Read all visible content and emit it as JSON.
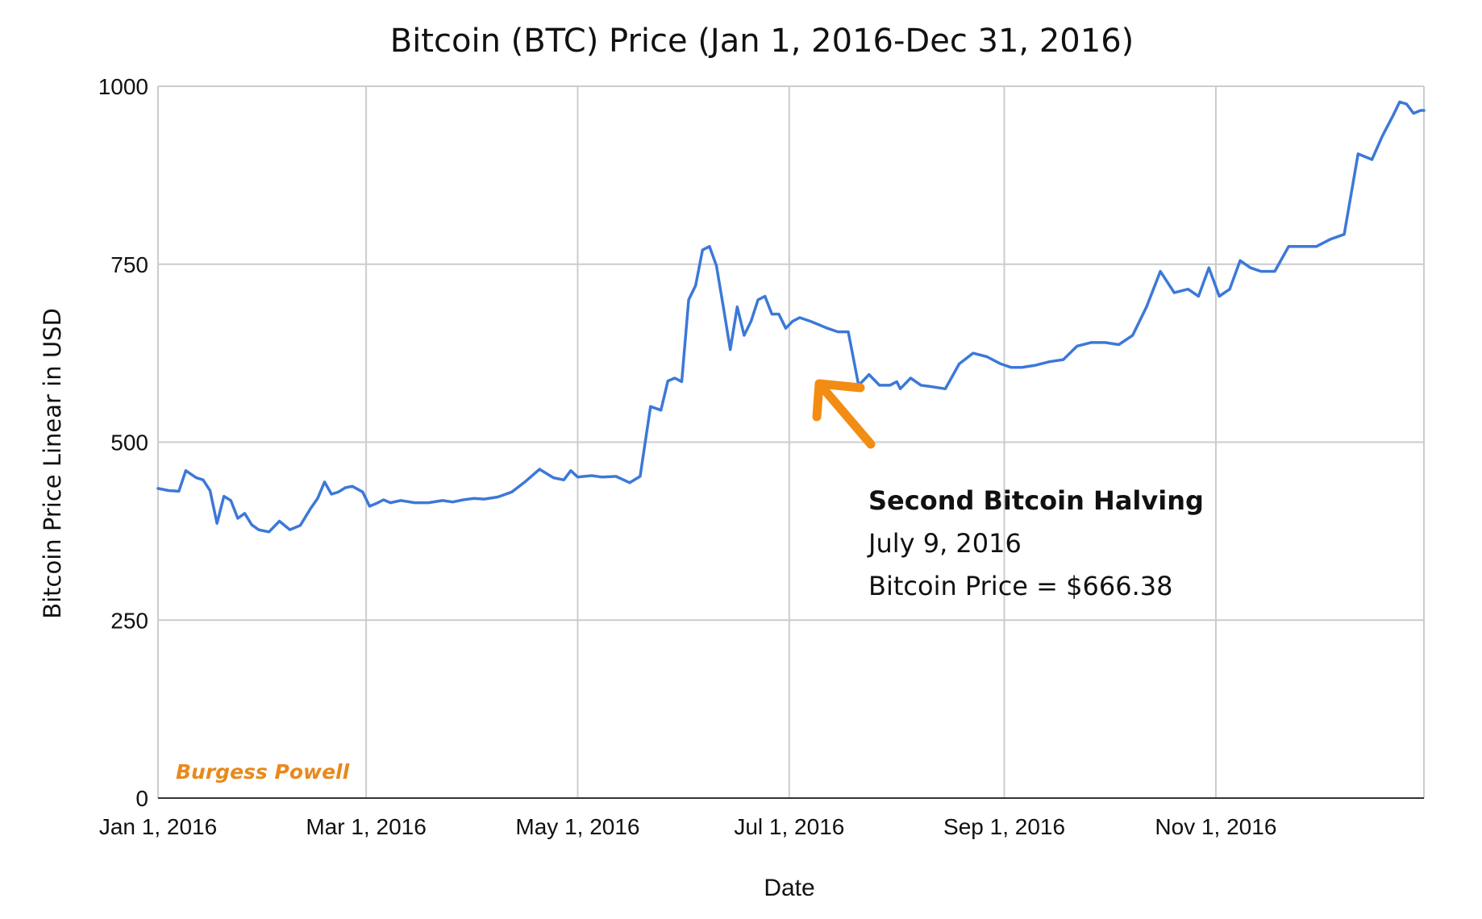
{
  "chart_data": {
    "type": "line",
    "title": "Bitcoin (BTC) Price (Jan 1, 2016-Dec 31, 2016)",
    "xlabel": "Date",
    "ylabel": "Bitcoin Price Linear in USD",
    "xlim": [
      "2016-01-01",
      "2016-12-31"
    ],
    "ylim": [
      0,
      1000
    ],
    "yticks": [
      "0",
      "250",
      "500",
      "750",
      "1000"
    ],
    "xticks": [
      {
        "date": "2016-01-01",
        "label": "Jan 1, 2016"
      },
      {
        "date": "2016-03-01",
        "label": "Mar 1, 2016"
      },
      {
        "date": "2016-05-01",
        "label": "May 1, 2016"
      },
      {
        "date": "2016-07-01",
        "label": "Jul 1, 2016"
      },
      {
        "date": "2016-09-01",
        "label": "Sep 1, 2016"
      },
      {
        "date": "2016-11-01",
        "label": "Nov 1, 2016"
      }
    ],
    "grid": true,
    "line_color": "#3c78d8",
    "series": [
      {
        "x": [
          "2016-01-01",
          "2016-01-04",
          "2016-01-07",
          "2016-01-09",
          "2016-01-12",
          "2016-01-14",
          "2016-01-16",
          "2016-01-18",
          "2016-01-20",
          "2016-01-22",
          "2016-01-24",
          "2016-01-26",
          "2016-01-28",
          "2016-01-30",
          "2016-02-02",
          "2016-02-05",
          "2016-02-08",
          "2016-02-11",
          "2016-02-14",
          "2016-02-16",
          "2016-02-18",
          "2016-02-20",
          "2016-02-22",
          "2016-02-24",
          "2016-02-26",
          "2016-02-29",
          "2016-03-02",
          "2016-03-04",
          "2016-03-06",
          "2016-03-08",
          "2016-03-11",
          "2016-03-15",
          "2016-03-19",
          "2016-03-23",
          "2016-03-26",
          "2016-03-29",
          "2016-04-01",
          "2016-04-04",
          "2016-04-08",
          "2016-04-12",
          "2016-04-16",
          "2016-04-20",
          "2016-04-24",
          "2016-04-27",
          "2016-04-29",
          "2016-05-01",
          "2016-05-05",
          "2016-05-08",
          "2016-05-12",
          "2016-05-16",
          "2016-05-19",
          "2016-05-22",
          "2016-05-25",
          "2016-05-27",
          "2016-05-29",
          "2016-05-31",
          "2016-06-02",
          "2016-06-04",
          "2016-06-06",
          "2016-06-08",
          "2016-06-10",
          "2016-06-12",
          "2016-06-14",
          "2016-06-16",
          "2016-06-18",
          "2016-06-20",
          "2016-06-22",
          "2016-06-24",
          "2016-06-26",
          "2016-06-28",
          "2016-06-30",
          "2016-07-02",
          "2016-07-04",
          "2016-07-07",
          "2016-07-09",
          "2016-07-12",
          "2016-07-15",
          "2016-07-18",
          "2016-07-21",
          "2016-07-24",
          "2016-07-27",
          "2016-07-30",
          "2016-08-01",
          "2016-08-02",
          "2016-08-05",
          "2016-08-08",
          "2016-08-11",
          "2016-08-15",
          "2016-08-19",
          "2016-08-23",
          "2016-08-27",
          "2016-08-31",
          "2016-09-03",
          "2016-09-06",
          "2016-09-10",
          "2016-09-14",
          "2016-09-18",
          "2016-09-22",
          "2016-09-26",
          "2016-09-30",
          "2016-10-04",
          "2016-10-08",
          "2016-10-12",
          "2016-10-16",
          "2016-10-20",
          "2016-10-24",
          "2016-10-27",
          "2016-10-30",
          "2016-11-02",
          "2016-11-05",
          "2016-11-08",
          "2016-11-11",
          "2016-11-14",
          "2016-11-18",
          "2016-11-22",
          "2016-11-26",
          "2016-11-30",
          "2016-12-04",
          "2016-12-08",
          "2016-12-12",
          "2016-12-16",
          "2016-12-19",
          "2016-12-22",
          "2016-12-24",
          "2016-12-26",
          "2016-12-28",
          "2016-12-30",
          "2016-12-31"
        ],
        "y": [
          435,
          432,
          431,
          460,
          450,
          447,
          432,
          386,
          424,
          418,
          393,
          400,
          384,
          377,
          374,
          389,
          377,
          383,
          407,
          421,
          444,
          427,
          430,
          436,
          438,
          430,
          410,
          414,
          419,
          415,
          418,
          415,
          415,
          418,
          416,
          419,
          421,
          420,
          423,
          430,
          445,
          462,
          450,
          447,
          460,
          451,
          453,
          451,
          452,
          443,
          452,
          550,
          545,
          586,
          590,
          585,
          700,
          720,
          770,
          775,
          748,
          690,
          630,
          690,
          650,
          670,
          700,
          705,
          680,
          680,
          660,
          670,
          675,
          670,
          666,
          660,
          655,
          655,
          580,
          595,
          580,
          580,
          585,
          575,
          590,
          580,
          578,
          575,
          610,
          625,
          620,
          610,
          605,
          605,
          608,
          613,
          616,
          635,
          640,
          640,
          637,
          650,
          690,
          740,
          710,
          715,
          705,
          745,
          705,
          715,
          755,
          745,
          740,
          740,
          775,
          775,
          775,
          785,
          792,
          905,
          897,
          930,
          958,
          978,
          975,
          962,
          966,
          966
        ]
      }
    ],
    "annotations": {
      "title": "Second Bitcoin Halving",
      "date": "July 9, 2016",
      "price": "Bitcoin Price = $666.38",
      "arrow_color": "#f28c12"
    },
    "watermark": "Burgess Powell",
    "watermark_color": "#e8891c"
  }
}
